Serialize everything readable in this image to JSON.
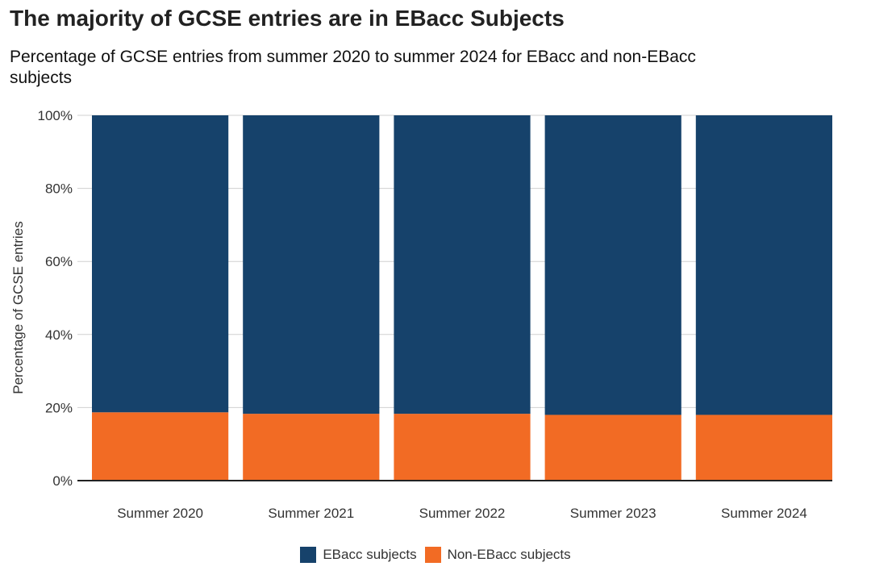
{
  "title": "The majority of GCSE entries are in EBacc Subjects",
  "subtitle": "Percentage of GCSE entries from summer 2020 to summer 2024 for EBacc and non-EBacc subjects",
  "colors": {
    "ebacc": "#16426B",
    "non_ebacc": "#F26B24",
    "grid": "#D0D0D0",
    "axis": "#222222"
  },
  "chart_data": {
    "type": "bar",
    "stacked": true,
    "categories": [
      "Summer 2020",
      "Summer 2021",
      "Summer 2022",
      "Summer 2023",
      "Summer 2024"
    ],
    "series": [
      {
        "name": "Non-EBacc subjects",
        "values": [
          18.7,
          18.3,
          18.3,
          18.0,
          18.0
        ],
        "color": "#F26B24"
      },
      {
        "name": "EBacc subjects",
        "values": [
          81.3,
          81.7,
          81.7,
          82.0,
          82.0
        ],
        "color": "#16426B"
      }
    ],
    "title": "The majority of GCSE entries are in EBacc Subjects",
    "subtitle": "Percentage of GCSE entries from summer 2020 to summer 2024 for EBacc and non-EBacc subjects",
    "xlabel": "",
    "ylabel": "Percentage of GCSE entries",
    "ylim": [
      0,
      100
    ],
    "yticks": [
      "0%",
      "20%",
      "40%",
      "60%",
      "80%",
      "100%"
    ],
    "grid": true,
    "legend_position": "bottom"
  },
  "legend": [
    {
      "label": "EBacc subjects",
      "color": "#16426B"
    },
    {
      "label": "Non-EBacc subjects",
      "color": "#F26B24"
    }
  ]
}
